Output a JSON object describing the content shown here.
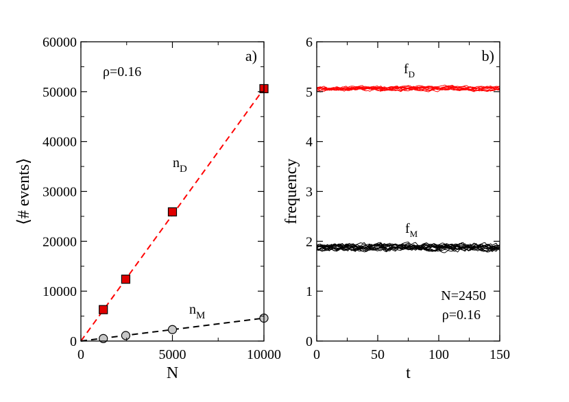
{
  "chart_data": [
    {
      "type": "scatter",
      "panel_label": "a)",
      "xlabel": "N",
      "ylabel": "⟨# events⟩",
      "xlim": [
        0,
        10000
      ],
      "ylim": [
        0,
        60000
      ],
      "xticks": [
        0,
        5000,
        10000
      ],
      "yticks": [
        0,
        10000,
        20000,
        30000,
        40000,
        50000,
        60000
      ],
      "annotation": "ρ=0.16",
      "series": [
        {
          "name": "n_D",
          "label_main": "n",
          "label_sub": "D",
          "color": "#ff0000",
          "marker": "square",
          "points": [
            [
              1225,
              6300
            ],
            [
              2450,
              12400
            ],
            [
              5000,
              25900
            ],
            [
              10000,
              50600
            ]
          ],
          "fit_line": [
            [
              0,
              0
            ],
            [
              10000,
              50600
            ]
          ]
        },
        {
          "name": "n_M",
          "label_main": "n",
          "label_sub": "M",
          "color": "#000000",
          "marker": "circle",
          "points": [
            [
              1225,
              500
            ],
            [
              2450,
              1100
            ],
            [
              5000,
              2300
            ],
            [
              10000,
              4600
            ]
          ],
          "fit_line": [
            [
              0,
              0
            ],
            [
              10000,
              4600
            ]
          ]
        }
      ]
    },
    {
      "type": "line",
      "panel_label": "b)",
      "xlabel": "t",
      "ylabel": "frequency",
      "xlim": [
        0,
        150
      ],
      "ylim": [
        0,
        6
      ],
      "xticks": [
        0,
        50,
        100,
        150
      ],
      "yticks": [
        0,
        1,
        2,
        3,
        4,
        5,
        6
      ],
      "annotations": [
        "N=2450",
        "ρ=0.16"
      ],
      "series": [
        {
          "name": "f_D",
          "label_main": "f",
          "label_sub": "D",
          "color": "#ff0000",
          "mean": 5.06,
          "spread": 0.05,
          "runs": 10
        },
        {
          "name": "f_M",
          "label_main": "f",
          "label_sub": "M",
          "color": "#000000",
          "mean": 1.88,
          "spread": 0.08,
          "runs": 15
        }
      ]
    }
  ]
}
